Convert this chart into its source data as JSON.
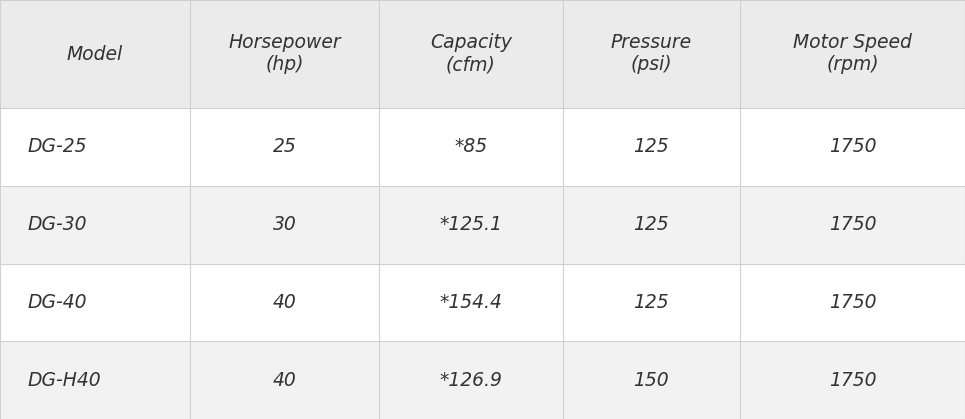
{
  "headers": [
    "Model",
    "Horsepower\n(hp)",
    "Capacity\n(cfm)",
    "Pressure\n(psi)",
    "Motor Speed\n(rpm)"
  ],
  "rows": [
    [
      "DG-25",
      "25",
      "*85",
      "125",
      "1750"
    ],
    [
      "DG-30",
      "30",
      "*125.1",
      "125",
      "1750"
    ],
    [
      "DG-40",
      "40",
      "*154.4",
      "125",
      "1750"
    ],
    [
      "DG-H40",
      "40",
      "*126.9",
      "150",
      "1750"
    ]
  ],
  "col_bounds": [
    0.0,
    0.197,
    0.393,
    0.583,
    0.767,
    1.0
  ],
  "header_bg": "#ebebeb",
  "row_bg": [
    "#ffffff",
    "#f2f2f2",
    "#ffffff",
    "#f2f2f2"
  ],
  "border_color": "#d0d0d0",
  "text_color": "#333333",
  "font_size": 13.5,
  "header_font_size": 13.5,
  "figure_bg": "#ffffff",
  "fig_width": 9.65,
  "fig_height": 4.19,
  "dpi": 100
}
